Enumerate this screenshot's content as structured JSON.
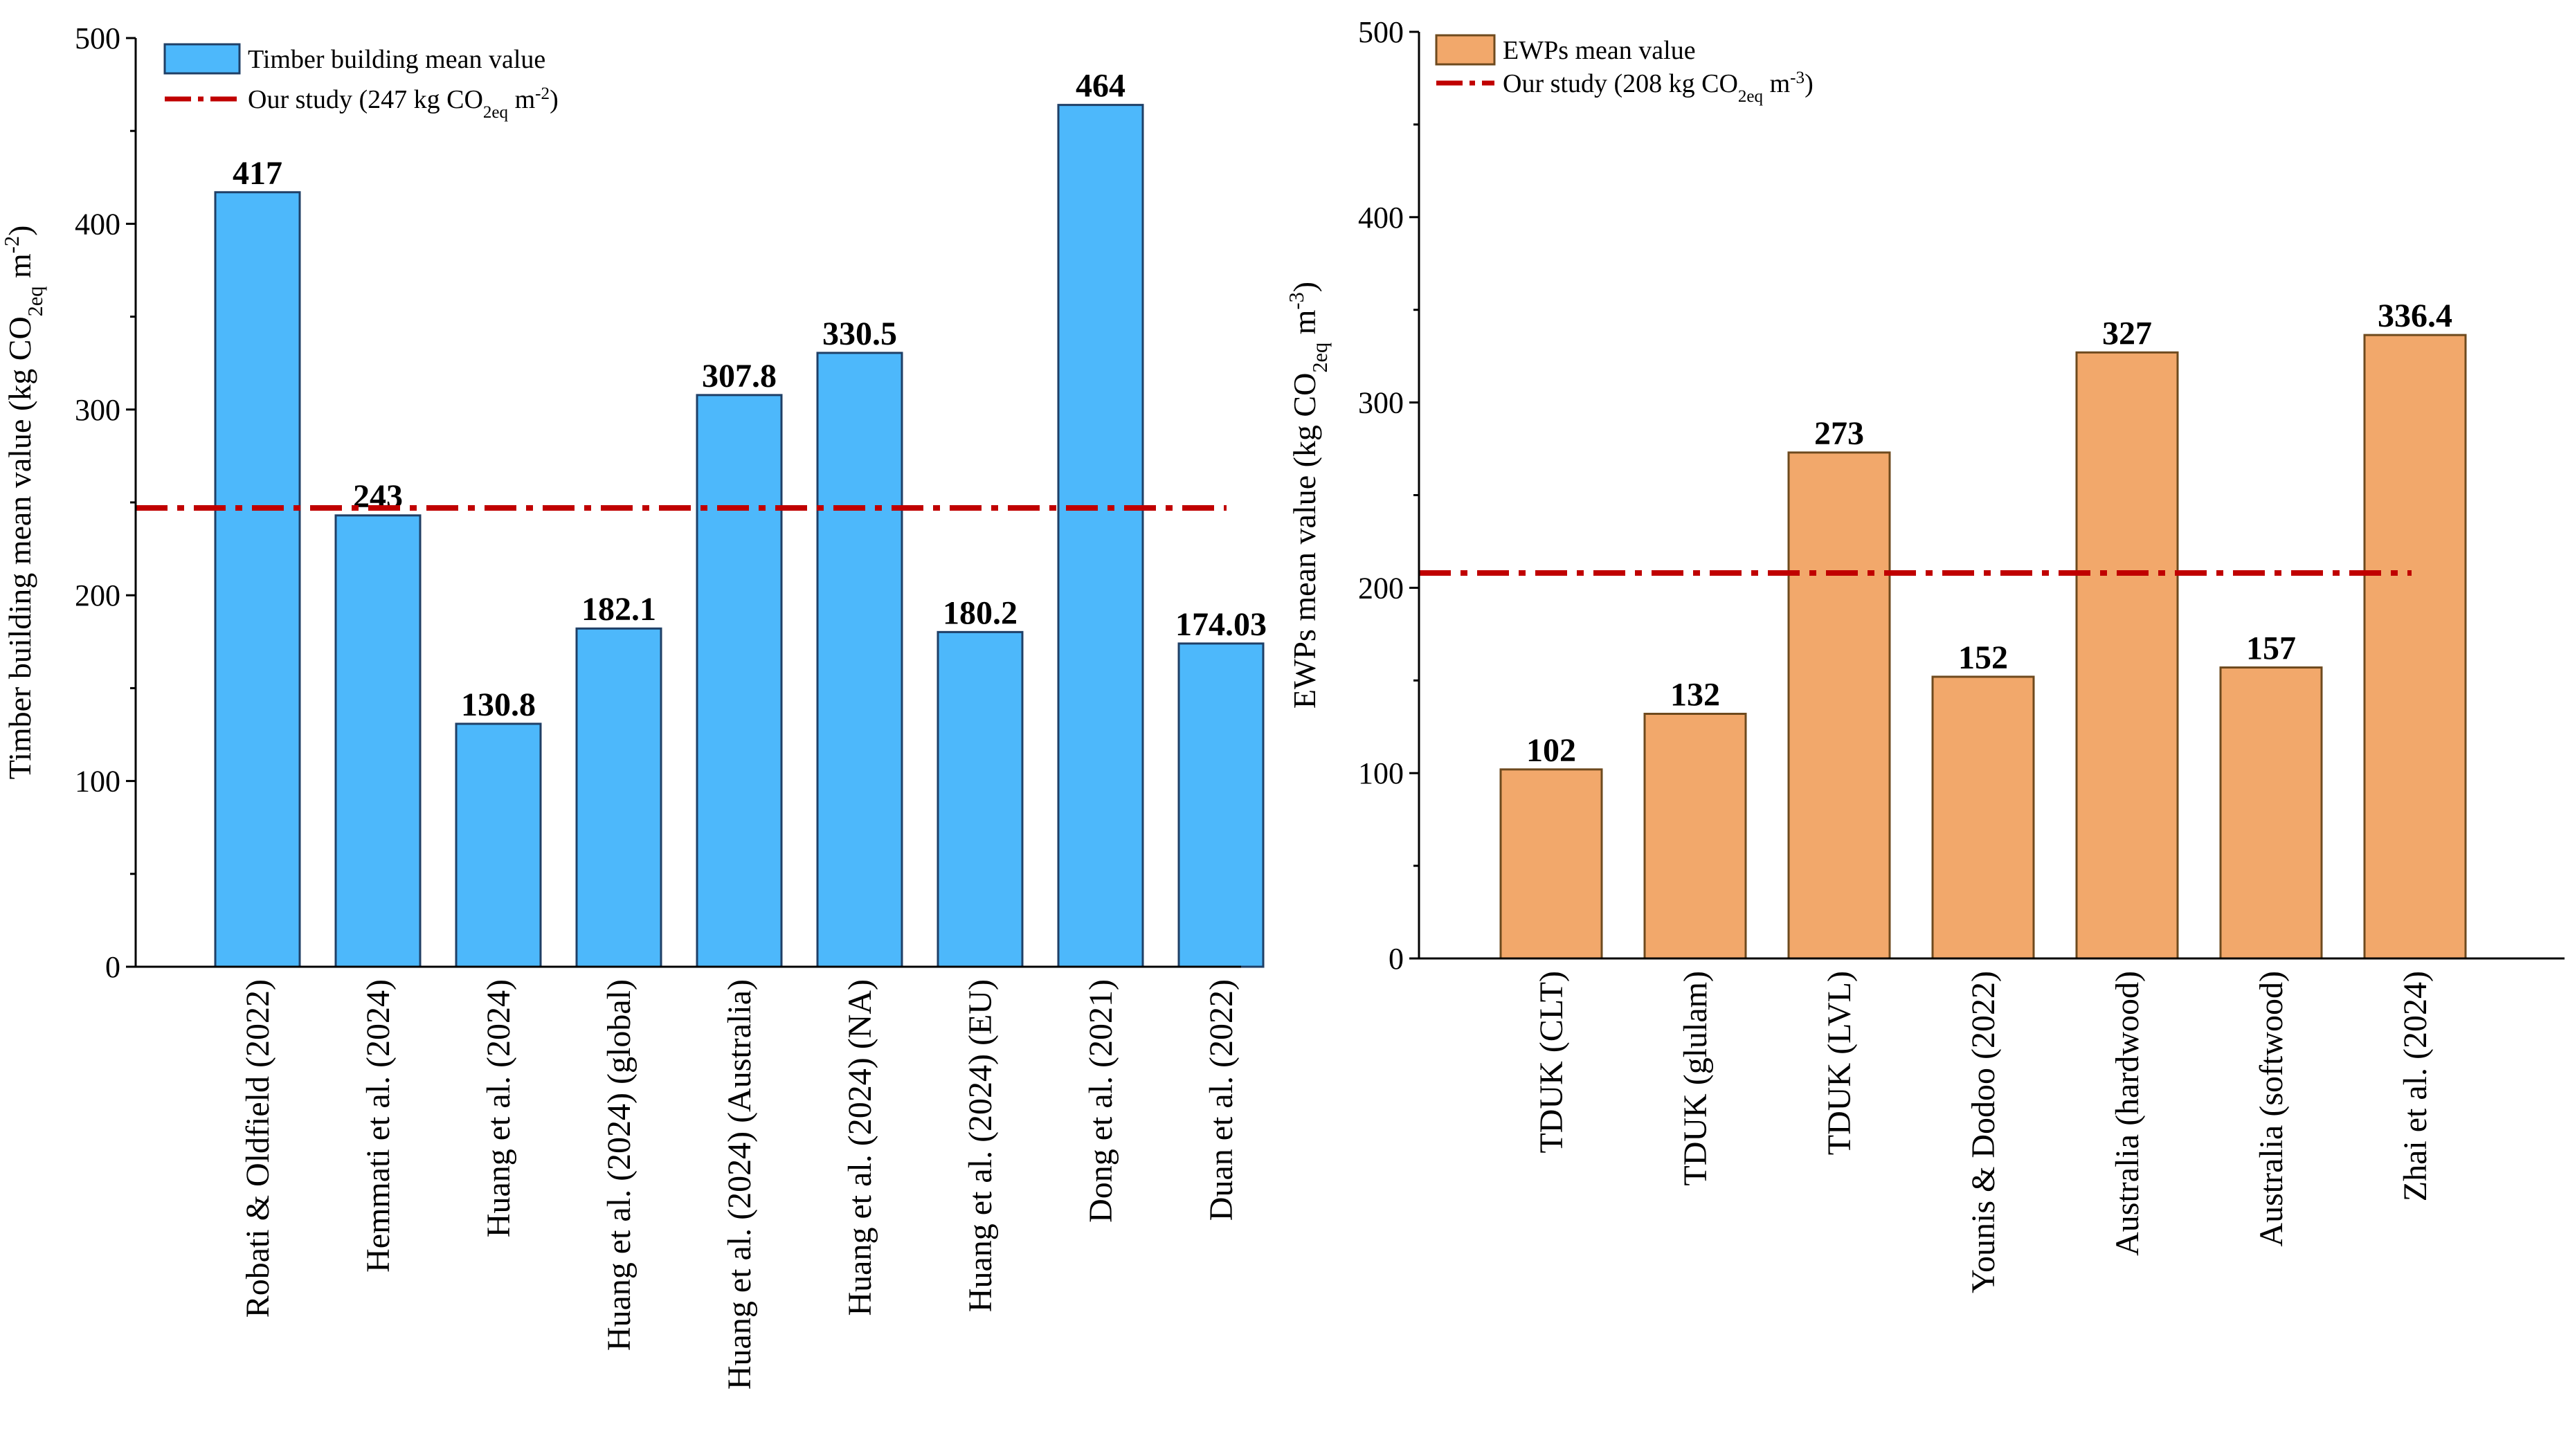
{
  "chart_data": [
    {
      "type": "bar",
      "title": "",
      "xlabel": "",
      "ylabel": "Timber building mean value (kg CO2eq m-2)",
      "ylabel_parts": {
        "pre": "Timber building mean value (kg CO",
        "sub": "2eq",
        "mid": " m",
        "sup": "-2",
        "post": ")"
      },
      "ylim": [
        0,
        500
      ],
      "yticks": [
        0,
        100,
        200,
        300,
        400,
        500
      ],
      "categories": [
        "Robati & Oldfield (2022)",
        "Hemmati et al. (2024)",
        "Huang et al. (2024)",
        "Huang et al. (2024) (global)",
        "Huang et al. (2024) (Australia)",
        "Huang et al. (2024) (NA)",
        "Huang et al. (2024) (EU)",
        "Dong et al. (2021)",
        "Duan et al. (2022)"
      ],
      "values": [
        417,
        243,
        130.8,
        182.1,
        307.8,
        330.5,
        180.2,
        464,
        174.03
      ],
      "value_labels": [
        "417",
        "243",
        "130.8",
        "182.1",
        "307.8",
        "330.5",
        "180.2",
        "464",
        "174.03"
      ],
      "bar_color": "#4db8fb",
      "bar_edge": "#1f3f66",
      "reference": {
        "value": 247,
        "color": "#c00000"
      },
      "legend": {
        "position": "top-left",
        "bar_label": "Timber building mean value",
        "line_label": {
          "pre": "Our study (247 kg CO",
          "sub": "2eq",
          "mid": " m",
          "sup": "-2",
          "post": ")"
        }
      }
    },
    {
      "type": "bar",
      "title": "",
      "xlabel": "",
      "ylabel": "EWPs mean value (kg CO2eq m-3)",
      "ylabel_parts": {
        "pre": "EWPs mean value (kg CO",
        "sub": "2eq",
        "mid": " m",
        "sup": "-3",
        "post": ")"
      },
      "ylim": [
        0,
        500
      ],
      "yticks": [
        0,
        100,
        200,
        300,
        400,
        500
      ],
      "categories": [
        "TDUK (CLT)",
        "TDUK (glulam)",
        "TDUK (LVL)",
        "Younis & Dodoo (2022)",
        "Australia (hardwood)",
        "Australia (softwood)",
        "Zhai et al. (2024)"
      ],
      "values": [
        102,
        132,
        273,
        152,
        327,
        157,
        336.4
      ],
      "value_labels": [
        "102",
        "132",
        "273",
        "152",
        "327",
        "157",
        "336.4"
      ],
      "bar_color": "#f2a86b",
      "bar_edge": "#6e4a1e",
      "reference": {
        "value": 208,
        "color": "#c00000"
      },
      "legend": {
        "position": "top-left",
        "bar_label": "EWPs mean value",
        "line_label": {
          "pre": "Our study (208 kg CO",
          "sub": "2eq",
          "mid": " m",
          "sup": "-3",
          "post": ")"
        }
      }
    }
  ]
}
